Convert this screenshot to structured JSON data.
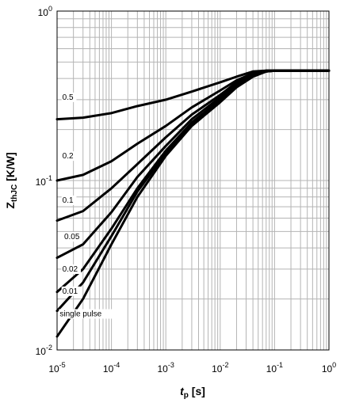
{
  "chart_data": {
    "type": "line",
    "title": "",
    "xlabel": {
      "main": "t",
      "sub": "p",
      "unit": " [s]"
    },
    "ylabel": {
      "main": "Z",
      "sub": "thJC",
      "unit": " [K/W]"
    },
    "xscale": "log",
    "yscale": "log",
    "xlim": [
      1e-05,
      1
    ],
    "ylim": [
      0.01,
      1
    ],
    "grid": true,
    "legend": "none",
    "x_ticks": [
      {
        "base": "10",
        "exp": "-5",
        "value": 1e-05
      },
      {
        "base": "10",
        "exp": "-4",
        "value": 0.0001
      },
      {
        "base": "10",
        "exp": "-3",
        "value": 0.001
      },
      {
        "base": "10",
        "exp": "-2",
        "value": 0.01
      },
      {
        "base": "10",
        "exp": "-1",
        "value": 0.1
      },
      {
        "base": "10",
        "exp": "0",
        "value": 1
      }
    ],
    "y_ticks": [
      {
        "base": "10",
        "exp": "-2",
        "value": 0.01
      },
      {
        "base": "10",
        "exp": "-1",
        "value": 0.1
      },
      {
        "base": "10",
        "exp": "0",
        "value": 1
      }
    ],
    "series": [
      {
        "name": "0.5",
        "x": [
          1e-05,
          3e-05,
          0.0001,
          0.0003,
          0.001,
          0.003,
          0.01,
          0.02,
          0.04,
          0.07,
          0.1,
          0.3,
          1
        ],
        "y": [
          0.23,
          0.235,
          0.25,
          0.275,
          0.3,
          0.335,
          0.38,
          0.41,
          0.44,
          0.445,
          0.445,
          0.445,
          0.445
        ]
      },
      {
        "name": "0.2",
        "x": [
          1e-05,
          3e-05,
          0.0001,
          0.0003,
          0.001,
          0.003,
          0.01,
          0.02,
          0.04,
          0.07,
          0.1,
          0.3,
          1
        ],
        "y": [
          0.1,
          0.108,
          0.13,
          0.165,
          0.21,
          0.27,
          0.34,
          0.39,
          0.43,
          0.445,
          0.445,
          0.445,
          0.445
        ]
      },
      {
        "name": "0.1",
        "x": [
          1e-05,
          3e-05,
          0.0001,
          0.0003,
          0.001,
          0.003,
          0.01,
          0.02,
          0.04,
          0.07,
          0.1,
          0.3,
          1
        ],
        "y": [
          0.058,
          0.066,
          0.09,
          0.125,
          0.18,
          0.245,
          0.32,
          0.38,
          0.425,
          0.445,
          0.445,
          0.445,
          0.445
        ]
      },
      {
        "name": "0.05",
        "x": [
          1e-05,
          3e-05,
          0.0001,
          0.0003,
          0.001,
          0.003,
          0.01,
          0.02,
          0.04,
          0.07,
          0.1,
          0.3,
          1
        ],
        "y": [
          0.035,
          0.042,
          0.065,
          0.105,
          0.16,
          0.23,
          0.31,
          0.37,
          0.42,
          0.44,
          0.445,
          0.445,
          0.445
        ]
      },
      {
        "name": "0.02",
        "x": [
          1e-05,
          3e-05,
          0.0001,
          0.0003,
          0.001,
          0.003,
          0.01,
          0.02,
          0.04,
          0.07,
          0.1,
          0.3,
          1
        ],
        "y": [
          0.022,
          0.03,
          0.052,
          0.09,
          0.15,
          0.22,
          0.3,
          0.365,
          0.42,
          0.44,
          0.445,
          0.445,
          0.445
        ]
      },
      {
        "name": "0.01",
        "x": [
          1e-05,
          3e-05,
          0.0001,
          0.0003,
          0.001,
          0.003,
          0.01,
          0.02,
          0.04,
          0.07,
          0.1,
          0.3,
          1
        ],
        "y": [
          0.017,
          0.025,
          0.047,
          0.086,
          0.145,
          0.215,
          0.295,
          0.36,
          0.415,
          0.44,
          0.445,
          0.445,
          0.445
        ]
      },
      {
        "name": "single pulse",
        "x": [
          1e-05,
          3e-05,
          0.0001,
          0.0003,
          0.001,
          0.003,
          0.01,
          0.02,
          0.04,
          0.07,
          0.1,
          0.3,
          1
        ],
        "y": [
          0.012,
          0.02,
          0.042,
          0.08,
          0.14,
          0.21,
          0.29,
          0.355,
          0.41,
          0.44,
          0.445,
          0.445,
          0.445
        ]
      }
    ],
    "annotations": [
      {
        "text": "0.5",
        "x": 1.25e-05,
        "y": 0.3
      },
      {
        "text": "0.2",
        "x": 1.25e-05,
        "y": 0.135
      },
      {
        "text": "0.1",
        "x": 1.25e-05,
        "y": 0.074
      },
      {
        "text": "0.05",
        "x": 1.35e-05,
        "y": 0.045
      },
      {
        "text": "0.02",
        "x": 1.25e-05,
        "y": 0.029
      },
      {
        "text": "0.01",
        "x": 1.25e-05,
        "y": 0.0215
      },
      {
        "text": "single pulse",
        "x": 1.12e-05,
        "y": 0.0158
      }
    ]
  }
}
